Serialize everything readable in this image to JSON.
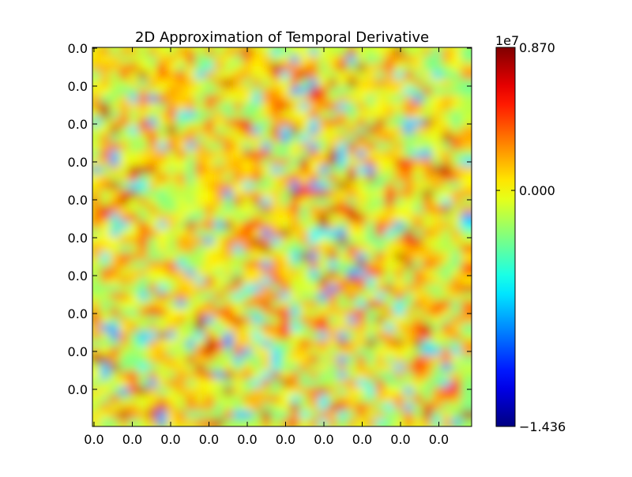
{
  "chart_data": {
    "type": "heatmap",
    "title": "2D Approximation of Temporal Derivative",
    "x_tick_labels": [
      "0.0",
      "0.0",
      "0.0",
      "0.0",
      "0.0",
      "0.0",
      "0.0",
      "0.0",
      "0.0",
      "0.0"
    ],
    "y_tick_labels": [
      "0.0",
      "0.0",
      "0.0",
      "0.0",
      "0.0",
      "0.0",
      "0.0",
      "0.0",
      "0.0",
      "0.0"
    ],
    "colorbar": {
      "colormap": "jet",
      "min": -1.436,
      "max": 0.87,
      "exponent_label": "1e7",
      "tick_labels": [
        "0.870",
        "0.000",
        "−1.436"
      ],
      "tick_values": [
        0.87,
        0.0,
        -1.436
      ]
    },
    "grid": false
  }
}
